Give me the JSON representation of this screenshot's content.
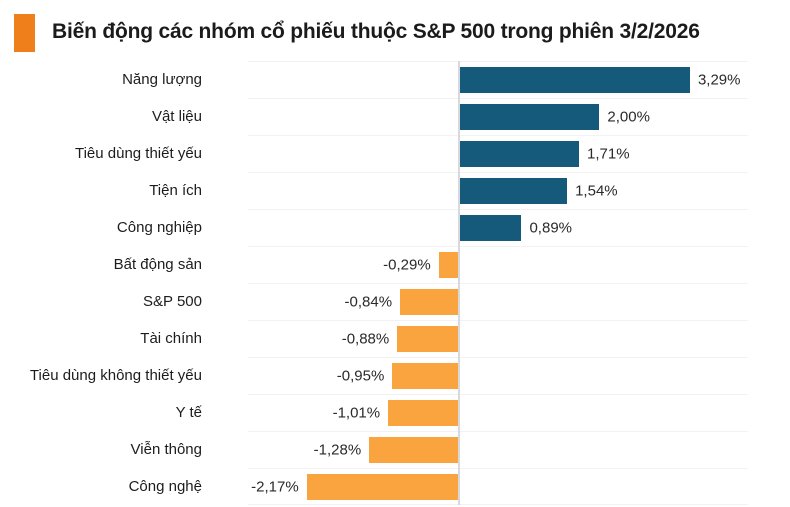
{
  "title": {
    "text": "Biến động các nhóm cổ phiếu thuộc S&P 500 trong phiên 3/2/2026",
    "accent_color": "#ef7f1a"
  },
  "chart_data": {
    "type": "bar",
    "orientation": "horizontal",
    "title": "Biến động các nhóm cổ phiếu thuộc S&P 500 trong phiên 3/2/2026",
    "categories": [
      "Năng lượng",
      "Vật liệu",
      "Tiêu dùng thiết yếu",
      "Tiện ích",
      "Công nghiệp",
      "Bất động sản",
      "S&P 500",
      "Tài chính",
      "Tiêu dùng không thiết yếu",
      "Y tế",
      "Viễn thông",
      "Công nghệ"
    ],
    "values": [
      3.29,
      2.0,
      1.71,
      1.54,
      0.89,
      -0.29,
      -0.84,
      -0.88,
      -0.95,
      -1.01,
      -1.28,
      -2.17
    ],
    "value_labels": [
      "3,29%",
      "2,00%",
      "1,71%",
      "1,54%",
      "0,89%",
      "-0,29%",
      "-0,84%",
      "-0,88%",
      "-0,95%",
      "-1,01%",
      "-1,28%",
      "-2,17%"
    ],
    "unit": "%",
    "xlim": [
      -3.0,
      4.12
    ],
    "positive_color": "#155a7a",
    "negative_color": "#f9a43f",
    "zero_axis_color": "#d7d9dd",
    "gridline_color": "#f2f2f2",
    "legend": "none",
    "grid": "row-separators-only"
  }
}
